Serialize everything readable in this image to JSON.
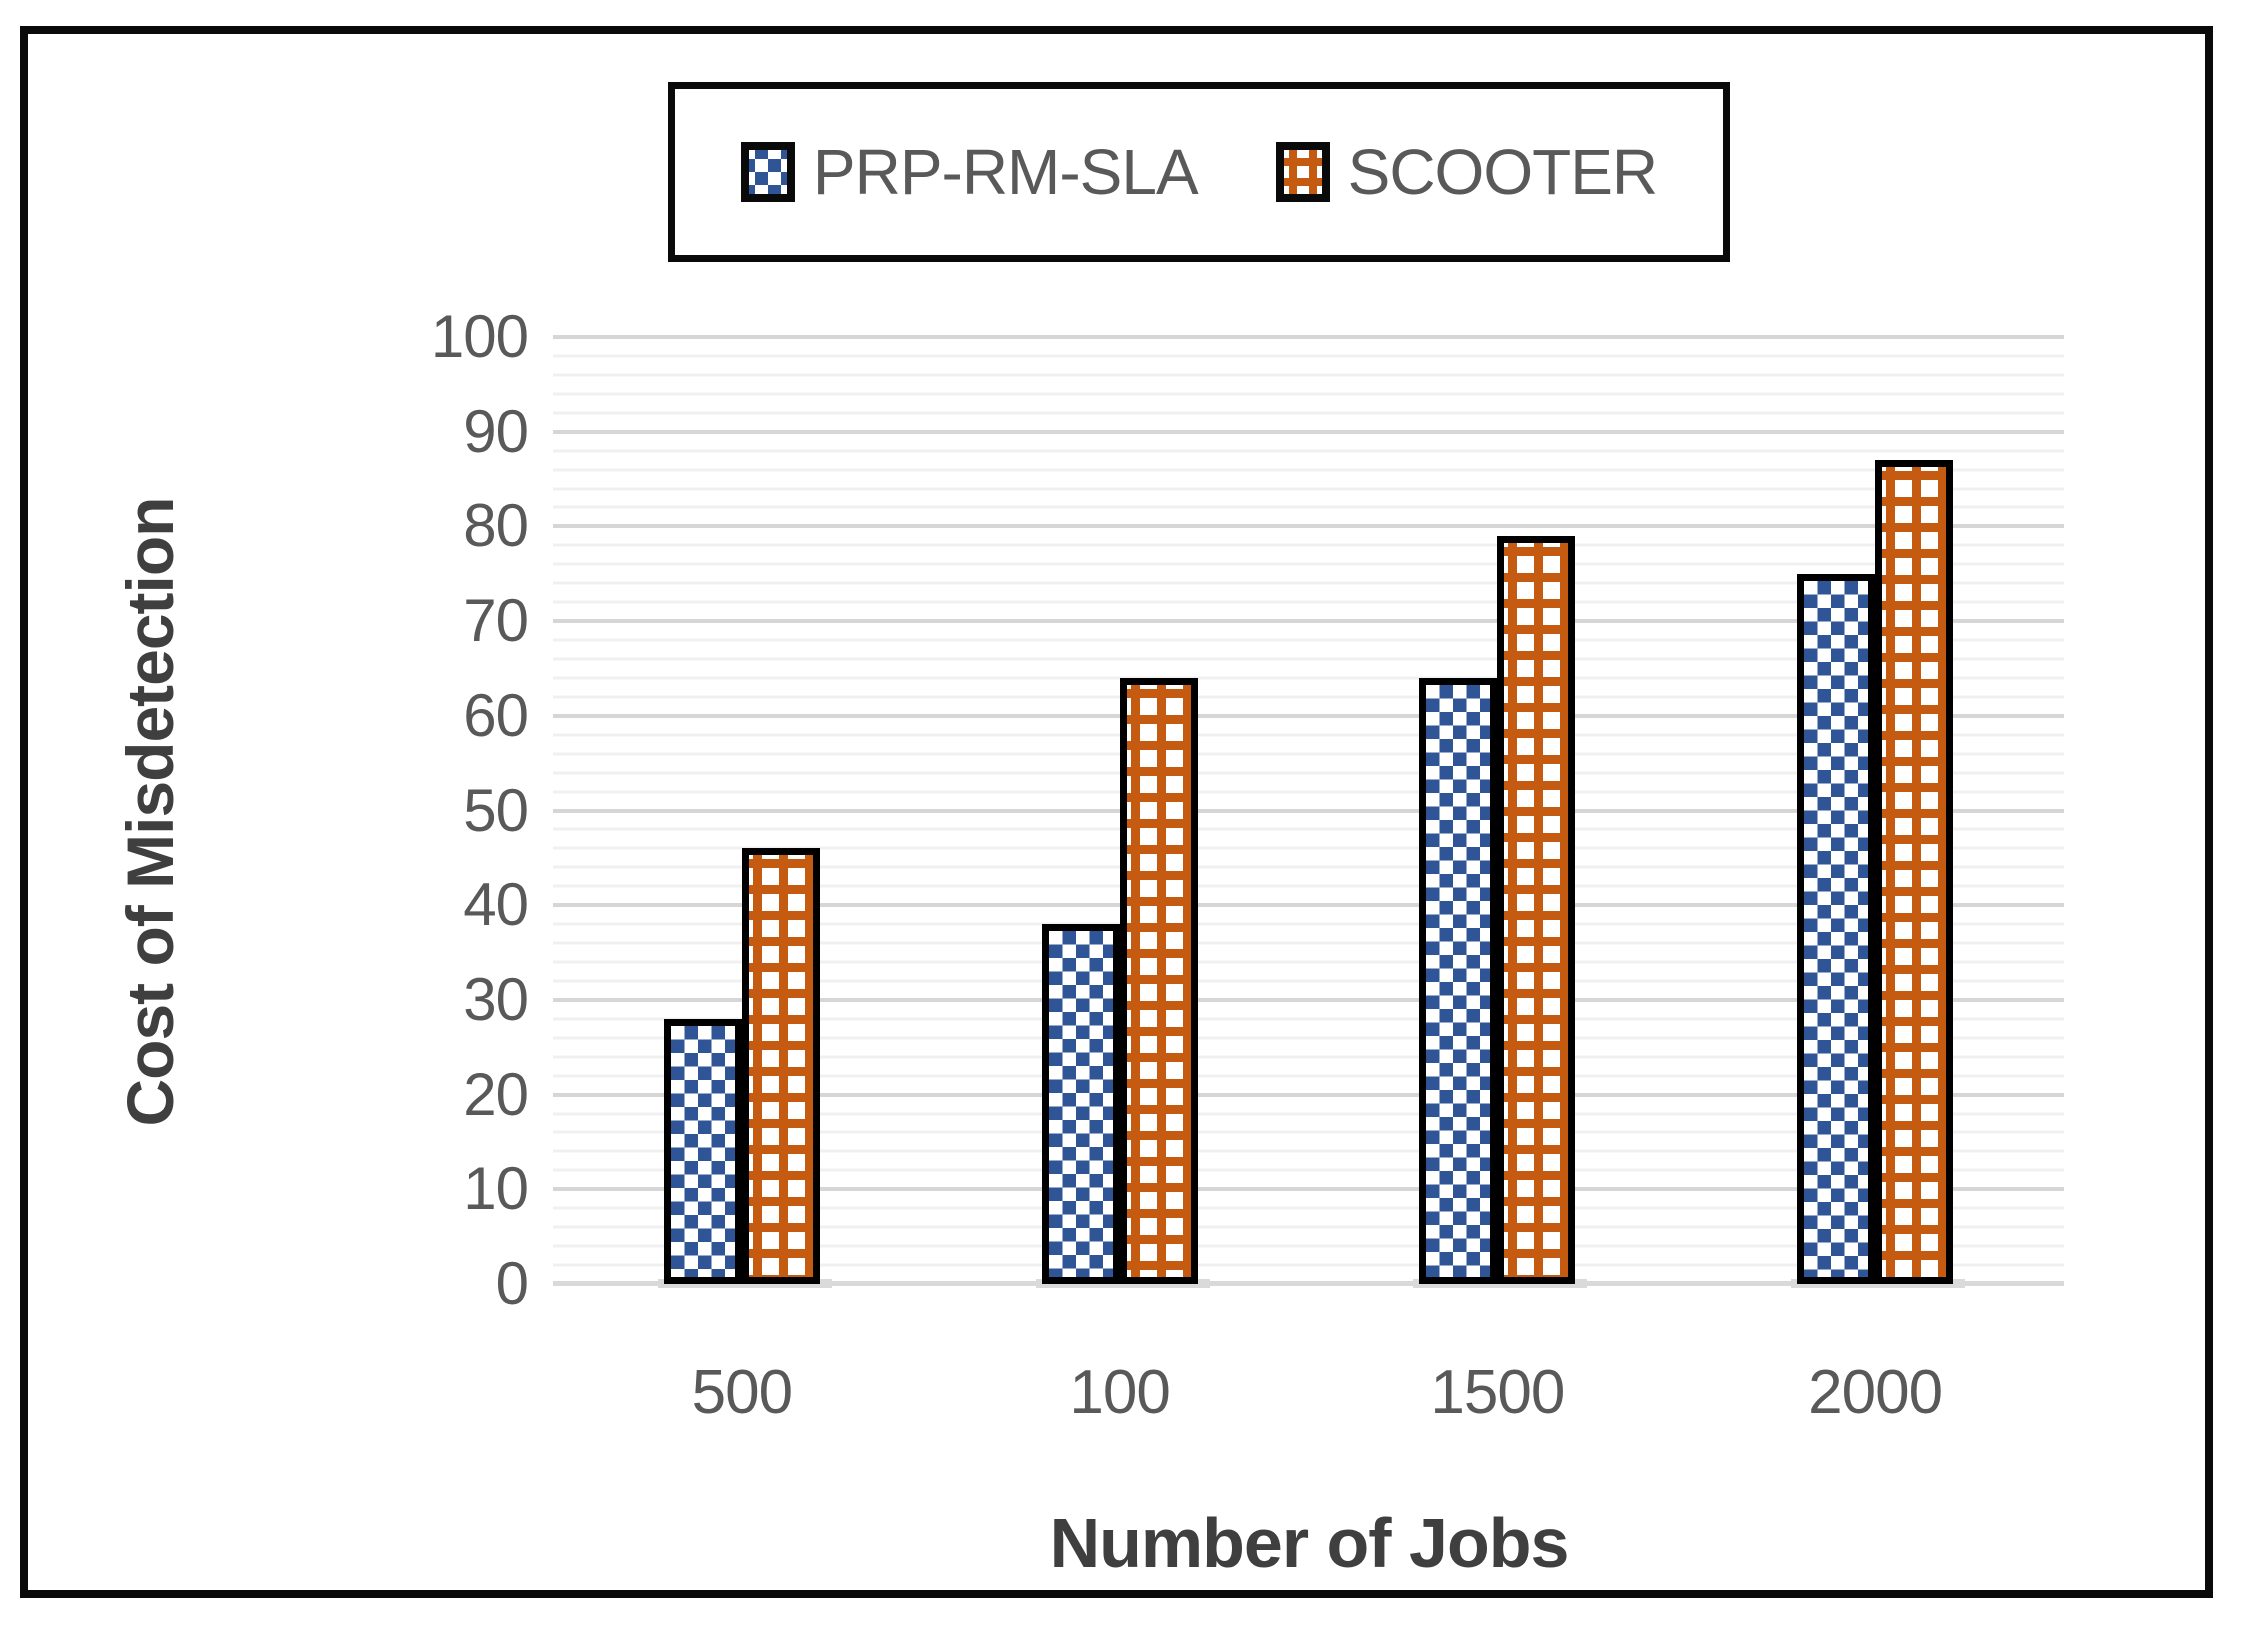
{
  "figure": {
    "background": "#ffffff",
    "border_color": "#0a0a0a"
  },
  "legend": {
    "items": [
      {
        "label": "PRP-RM-SLA",
        "swatch_icon": "blue-checker-swatch",
        "color": "#2F5597",
        "pattern": "checker"
      },
      {
        "label": "SCOOTER",
        "swatch_icon": "orange-grid-swatch",
        "color": "#C55A11",
        "pattern": "grid"
      }
    ]
  },
  "chart_data": {
    "type": "bar",
    "title": "",
    "xlabel": "Number of Jobs",
    "ylabel": "Cost of Misdetection",
    "categories": [
      "500",
      "100",
      "1500",
      "2000"
    ],
    "series": [
      {
        "name": "PRP-RM-SLA",
        "values": [
          28,
          38,
          64,
          75
        ],
        "color": "#2F5597",
        "pattern": "checker"
      },
      {
        "name": "SCOOTER",
        "values": [
          46,
          64,
          79,
          87
        ],
        "color": "#C55A11",
        "pattern": "grid"
      }
    ],
    "ylim": [
      0,
      100
    ],
    "yticks": [
      0,
      10,
      20,
      30,
      40,
      50,
      60,
      70,
      80,
      90,
      100
    ],
    "ytick_step": 10,
    "minor_grid_step": 2,
    "grid": true,
    "legend_position": "top-center"
  },
  "colors": {
    "tick_label": "#595959",
    "axis_title": "#3f3f3f",
    "major_grid": "#d6d6d6",
    "minor_grid": "#f0f0f0",
    "baseline": "#d9d9d9",
    "bar_outline": "#000000"
  }
}
